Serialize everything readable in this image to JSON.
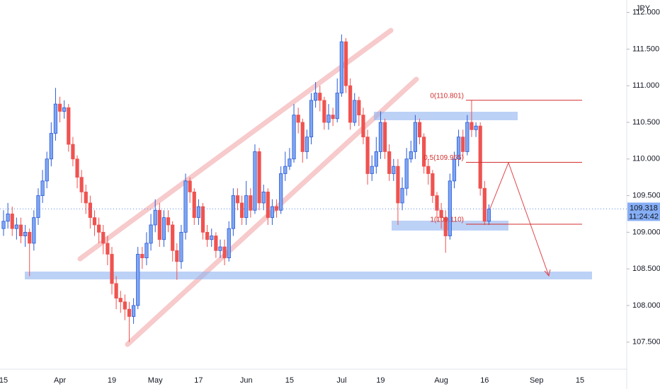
{
  "chart_data": {
    "type": "candlestick",
    "currency": "JPY",
    "up_color": "#7fa6f2",
    "up_border": "#2a5bd7",
    "down_color": "#ef5350",
    "ylim": [
      107.15,
      112.17
    ],
    "yticks": [
      {
        "value": 107.5,
        "label": "107.500"
      },
      {
        "value": 108,
        "label": "108.000"
      },
      {
        "value": 108.5,
        "label": "108.500"
      },
      {
        "value": 109,
        "label": "109.000"
      },
      {
        "value": 109.5,
        "label": "109.500"
      },
      {
        "value": 110,
        "label": "110.000"
      },
      {
        "value": 110.5,
        "label": "110.500"
      },
      {
        "value": 111,
        "label": "111.000"
      },
      {
        "value": 111.5,
        "label": "111.500"
      },
      {
        "value": 112,
        "label": "112.000"
      }
    ],
    "categories": [
      "15",
      null,
      null,
      null,
      null,
      null,
      null,
      null,
      null,
      null,
      null,
      null,
      null,
      "Apr",
      null,
      null,
      null,
      null,
      null,
      null,
      null,
      null,
      null,
      null,
      null,
      "19",
      null,
      null,
      null,
      null,
      null,
      null,
      null,
      null,
      null,
      "May",
      null,
      null,
      null,
      null,
      null,
      null,
      null,
      null,
      null,
      "17",
      null,
      null,
      null,
      null,
      null,
      null,
      null,
      null,
      null,
      null,
      "Jun",
      null,
      null,
      null,
      null,
      null,
      null,
      null,
      null,
      null,
      "15",
      null,
      null,
      null,
      null,
      null,
      null,
      null,
      null,
      null,
      null,
      null,
      "Jul",
      null,
      null,
      null,
      null,
      null,
      null,
      null,
      null,
      "19",
      null,
      null,
      null,
      null,
      null,
      null,
      null,
      null,
      null,
      null,
      null,
      null,
      null,
      "Aug",
      null,
      null,
      null,
      null,
      null,
      null,
      null,
      null,
      null,
      "16",
      null,
      null,
      null,
      null,
      null,
      null,
      null,
      null,
      null,
      null,
      null,
      "Sep",
      null,
      null,
      null,
      null,
      null,
      null,
      null,
      null,
      null,
      "15",
      null,
      null,
      null,
      null,
      null,
      null,
      null,
      null,
      null,
      null
    ],
    "open": [
      109.05,
      109.15,
      109.25,
      109.05,
      109.1,
      108.95,
      109.0,
      108.85,
      109.2,
      109.5,
      109.7,
      110.0,
      110.35,
      110.75,
      110.65,
      110.7,
      110.2,
      110.0,
      109.75,
      109.55,
      109.4,
      109.2,
      109.1,
      109.0,
      108.85,
      108.7,
      108.3,
      108.1,
      108.05,
      107.95,
      107.85,
      108.0,
      108.7,
      108.65,
      108.85,
      109.1,
      109.3,
      108.9,
      109.2,
      109.1,
      108.75,
      108.6,
      109.0,
      109.7,
      109.55,
      109.2,
      109.35,
      109.0,
      108.9,
      108.95,
      108.75,
      108.8,
      108.65,
      109.05,
      109.5,
      109.4,
      109.2,
      109.5,
      109.3,
      110.1,
      109.4,
      109.55,
      109.2,
      109.35,
      109.3,
      109.8,
      109.9,
      110.0,
      110.6,
      110.5,
      110.1,
      110.3,
      110.8,
      110.9,
      110.8,
      110.5,
      110.6,
      110.55,
      110.9,
      111.6,
      111.0,
      110.5,
      110.8,
      110.6,
      110.3,
      109.8,
      109.9,
      110.1,
      110.5,
      110.1,
      109.8,
      109.9,
      109.4,
      109.6,
      110.0,
      110.1,
      110.5,
      110.3,
      109.9,
      109.8,
      109.5,
      109.3,
      109.2,
      108.95,
      109.7,
      110.0,
      110.3,
      110.1,
      110.5,
      110.4,
      110.45,
      109.6,
      109.15,
      null,
      null,
      null,
      null,
      null,
      null,
      null,
      null,
      null,
      null,
      null,
      null,
      null,
      null,
      null,
      null,
      null,
      null,
      null,
      null,
      null,
      null,
      null,
      null,
      null,
      null,
      null,
      null,
      null,
      null,
      null
    ],
    "high": [
      109.3,
      109.4,
      109.35,
      109.2,
      109.2,
      109.1,
      109.05,
      109.3,
      109.6,
      109.85,
      110.1,
      110.5,
      110.97,
      110.85,
      110.8,
      110.75,
      110.3,
      110.05,
      109.85,
      109.65,
      109.5,
      109.3,
      109.2,
      109.1,
      108.95,
      108.8,
      108.4,
      108.2,
      108.15,
      108.05,
      108.1,
      108.8,
      108.8,
      109.0,
      109.25,
      109.45,
      109.4,
      109.3,
      109.3,
      109.15,
      108.85,
      109.1,
      109.8,
      109.75,
      109.6,
      109.45,
      109.4,
      109.1,
      109.05,
      109.0,
      108.9,
      108.9,
      109.15,
      109.6,
      109.6,
      109.5,
      109.7,
      109.6,
      110.2,
      110.15,
      109.65,
      109.6,
      109.45,
      109.45,
      109.9,
      110.1,
      110.15,
      110.75,
      110.7,
      110.55,
      110.4,
      110.9,
      111.05,
      111.0,
      110.85,
      110.75,
      110.7,
      111.1,
      111.7,
      111.65,
      111.1,
      110.9,
      110.85,
      110.7,
      110.4,
      110.05,
      110.3,
      110.65,
      110.55,
      110.2,
      110.0,
      110.0,
      109.75,
      110.15,
      110.25,
      110.6,
      110.55,
      110.35,
      110.0,
      109.85,
      109.55,
      109.4,
      109.3,
      109.8,
      110.1,
      110.4,
      110.4,
      110.6,
      110.8,
      110.5,
      110.5,
      109.7,
      109.38,
      null,
      null,
      null,
      null,
      null,
      null,
      null,
      null,
      null,
      null,
      null,
      null,
      null,
      null,
      null,
      null,
      null,
      null,
      null,
      null,
      null,
      null,
      null,
      null,
      null,
      null,
      null,
      null,
      null,
      null,
      null
    ],
    "low": [
      108.95,
      109.05,
      108.95,
      108.9,
      108.85,
      108.8,
      108.4,
      108.75,
      109.1,
      109.4,
      109.6,
      109.9,
      110.25,
      110.5,
      110.55,
      110.1,
      109.9,
      109.6,
      109.4,
      109.25,
      109.05,
      108.95,
      108.85,
      108.7,
      108.55,
      108.15,
      107.95,
      107.9,
      107.8,
      107.5,
      107.75,
      107.95,
      108.5,
      108.55,
      108.75,
      109.0,
      108.8,
      108.8,
      109.0,
      108.6,
      108.35,
      108.5,
      108.9,
      109.4,
      109.1,
      109.1,
      108.9,
      108.8,
      108.8,
      108.65,
      108.65,
      108.55,
      108.6,
      108.95,
      109.3,
      109.1,
      109.1,
      109.2,
      109.25,
      109.3,
      109.3,
      109.1,
      109.1,
      109.2,
      109.25,
      109.7,
      109.85,
      109.95,
      110.35,
      109.95,
      110.0,
      110.2,
      110.7,
      110.65,
      110.4,
      110.4,
      110.45,
      110.5,
      110.85,
      110.9,
      110.4,
      110.45,
      110.45,
      110.2,
      109.65,
      109.7,
      109.8,
      110.0,
      110.0,
      109.7,
      109.7,
      109.1,
      109.3,
      109.5,
      109.95,
      110.0,
      110.2,
      109.8,
      109.65,
      109.4,
      109.15,
      109.05,
      108.72,
      108.9,
      109.6,
      109.9,
      110.0,
      110.05,
      110.3,
      110.3,
      109.5,
      109.1,
      109.1,
      null,
      null,
      null,
      null,
      null,
      null,
      null,
      null,
      null,
      null,
      null,
      null,
      null,
      null,
      null,
      null,
      null,
      null,
      null,
      null,
      null,
      null,
      null,
      null,
      null,
      null,
      null,
      null,
      null,
      null,
      null
    ],
    "close": [
      109.15,
      109.25,
      109.05,
      109.1,
      108.95,
      109.0,
      108.85,
      109.2,
      109.5,
      109.7,
      110.0,
      110.35,
      110.75,
      110.65,
      110.7,
      110.2,
      110.0,
      109.75,
      109.55,
      109.4,
      109.2,
      109.1,
      109.0,
      108.85,
      108.7,
      108.3,
      108.1,
      108.05,
      107.95,
      107.85,
      108.0,
      108.7,
      108.65,
      108.85,
      109.1,
      109.3,
      108.9,
      109.2,
      109.1,
      108.75,
      108.6,
      109.0,
      109.7,
      109.55,
      109.2,
      109.35,
      109.0,
      108.9,
      108.95,
      108.75,
      108.8,
      108.65,
      109.05,
      109.5,
      109.4,
      109.2,
      109.5,
      109.3,
      110.1,
      109.4,
      109.55,
      109.2,
      109.35,
      109.3,
      109.8,
      109.9,
      110.0,
      110.6,
      110.5,
      110.1,
      110.3,
      110.8,
      110.9,
      110.8,
      110.5,
      110.6,
      110.55,
      110.9,
      111.6,
      111.0,
      110.5,
      110.8,
      110.6,
      110.3,
      109.8,
      109.9,
      110.1,
      110.5,
      110.1,
      109.8,
      109.9,
      109.4,
      109.6,
      110.0,
      110.1,
      110.5,
      110.3,
      109.9,
      109.8,
      109.5,
      109.3,
      109.2,
      108.95,
      109.7,
      110.0,
      110.3,
      110.1,
      110.5,
      110.4,
      110.45,
      109.6,
      109.15,
      109.318,
      null,
      null,
      null,
      null,
      null,
      null,
      null,
      null,
      null,
      null,
      null,
      null,
      null,
      null,
      null,
      null,
      null,
      null,
      null,
      null,
      null,
      null,
      null,
      null,
      null,
      null,
      null,
      null,
      null,
      null,
      null
    ],
    "last_price": {
      "value": 109.318,
      "label": "109.318"
    },
    "countdown": "11:24:42",
    "fib_levels": [
      {
        "value": 110.801,
        "label": "0(110.801)"
      },
      {
        "value": 109.955,
        "label": "0.5(109.955)"
      },
      {
        "value": 109.11,
        "label": "1(109.110)"
      }
    ],
    "fib_color": "#d32f2f"
  }
}
